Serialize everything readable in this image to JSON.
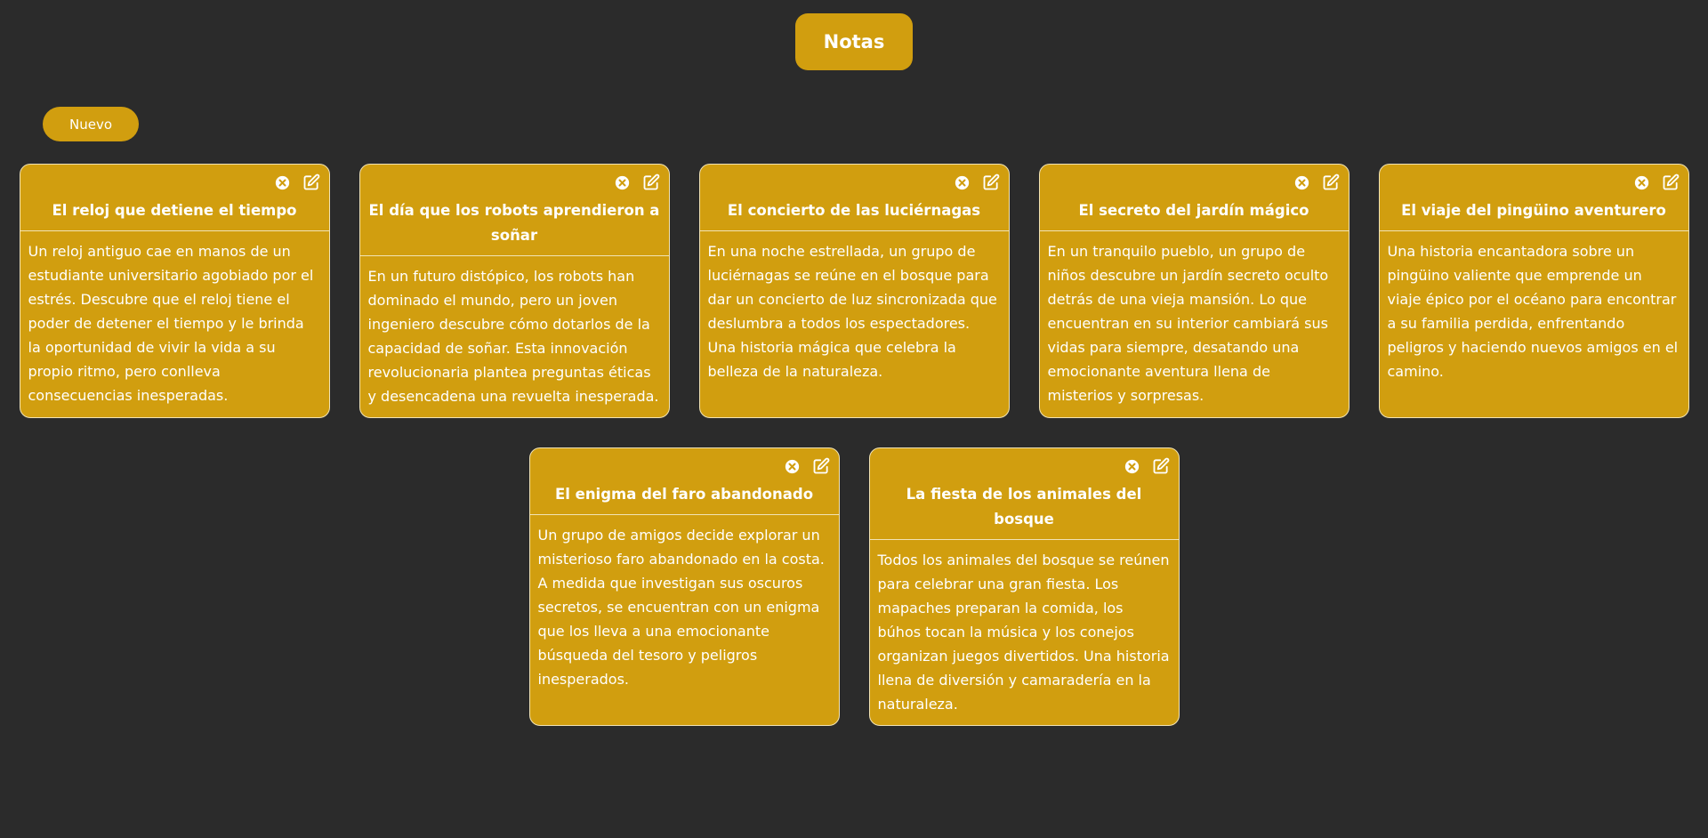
{
  "header": {
    "title": "Notas"
  },
  "toolbar": {
    "new_label": "Nuevo"
  },
  "notes": [
    {
      "title": "El reloj que detiene el tiempo",
      "body": "Un reloj antiguo cae en manos de un estudiante universitario agobiado por el estrés. Descubre que el reloj tiene el poder de detener el tiempo y le brinda la oportunidad de vivir la vida a su propio ritmo, pero conlleva consecuencias inesperadas."
    },
    {
      "title": "El día que los robots aprendieron a soñar",
      "body": "En un futuro distópico, los robots han dominado el mundo, pero un joven ingeniero descubre cómo dotarlos de la capacidad de soñar. Esta innovación revolucionaria plantea preguntas éticas y desencadena una revuelta inesperada."
    },
    {
      "title": "El concierto de las luciérnagas",
      "body": "En una noche estrellada, un grupo de luciérnagas se reúne en el bosque para dar un concierto de luz sincronizada que deslumbra a todos los espectadores. Una historia mágica que celebra la belleza de la naturaleza."
    },
    {
      "title": "El secreto del jardín mágico",
      "body": "En un tranquilo pueblo, un grupo de niños descubre un jardín secreto oculto detrás de una vieja mansión. Lo que encuentran en su interior cambiará sus vidas para siempre, desatando una emocionante aventura llena de misterios y sorpresas."
    },
    {
      "title": "El viaje del pingüino aventurero",
      "body": "Una historia encantadora sobre un pingüino valiente que emprende un viaje épico por el océano para encontrar a su familia perdida, enfrentando peligros y haciendo nuevos amigos en el camino."
    },
    {
      "title": "El enigma del faro abandonado",
      "body": "Un grupo de amigos decide explorar un misterioso faro abandonado en la costa. A medida que investigan sus oscuros secretos, se encuentran con un enigma que los lleva a una emocionante búsqueda del tesoro y peligros inesperados."
    },
    {
      "title": "La fiesta de los animales del bosque",
      "body": "Todos los animales del bosque se reúnen para celebrar una gran fiesta. Los mapaches preparan la comida, los búhos tocan la música y los conejos organizan juegos divertidos. Una historia llena de diversión y camaradería en la naturaleza."
    }
  ],
  "icons": {
    "delete": "close-circle-icon",
    "edit": "edit-icon"
  },
  "colors": {
    "background": "#2b2b2b",
    "accent": "#d19e0f",
    "card_border": "#f1e3b5",
    "text": "#ffffff"
  }
}
